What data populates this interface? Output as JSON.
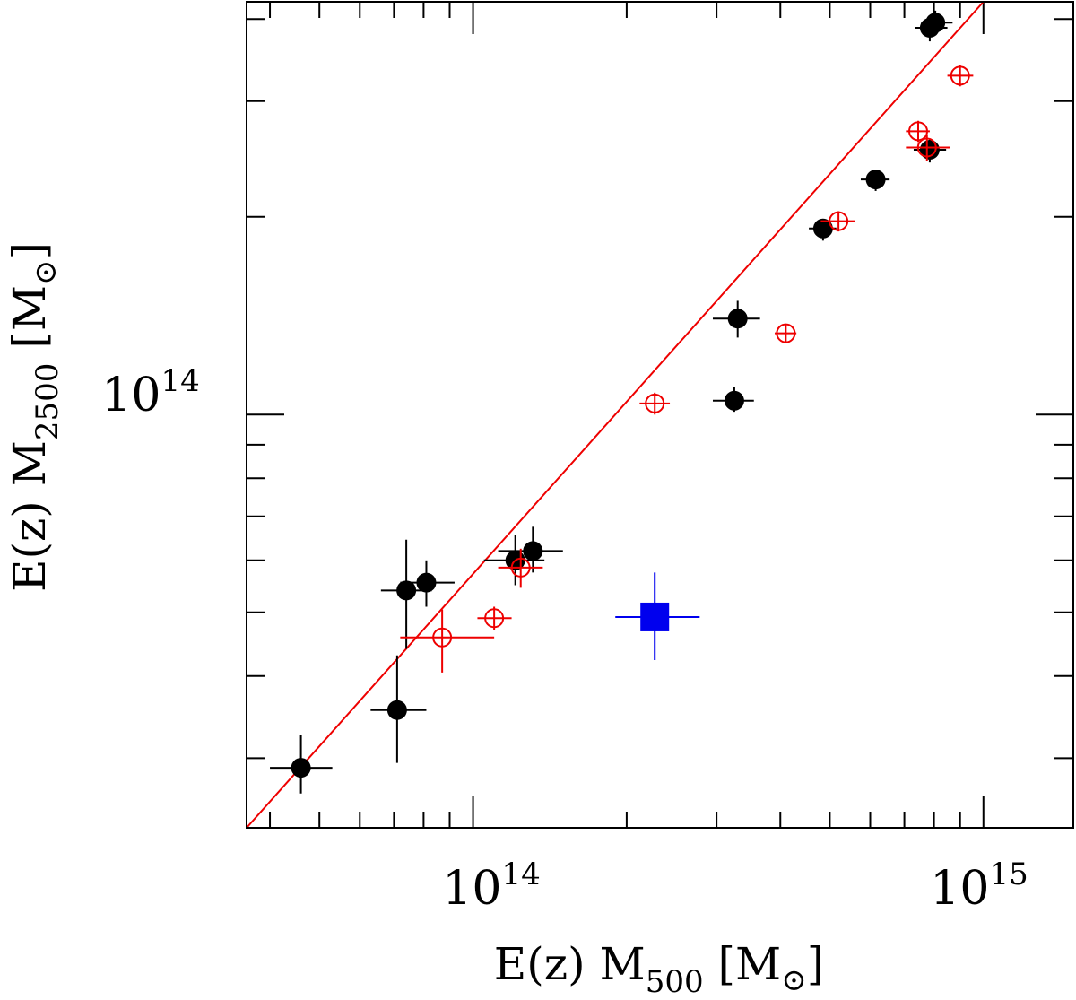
{
  "chart_data": {
    "type": "scatter",
    "xscale": "log",
    "yscale": "log",
    "xlim": [
      36000000000000.0,
      1500000000000000.0
    ],
    "ylim": [
      23500000000000.0,
      425000000000000.0
    ],
    "xlabel": {
      "base": "E(z)  M",
      "sub": "500",
      "unit_open": " [M",
      "unit_sub": "⊙",
      "unit_close": "]"
    },
    "ylabel": {
      "base": "E(z)  M",
      "sub": "2500",
      "unit_open": " [M",
      "unit_sub": "⊙",
      "unit_close": "]"
    },
    "x_tick_labels": [
      {
        "value": 100000000000000.0,
        "base": "10",
        "exp": "14"
      },
      {
        "value": 1000000000000000.0,
        "base": "10",
        "exp": "15"
      }
    ],
    "y_tick_labels": [
      {
        "value": 100000000000000.0,
        "base": "10",
        "exp": "14"
      }
    ],
    "fit_line": {
      "color": "#ee0000",
      "x": [
        36000000000000.0,
        1000000000000000.0
      ],
      "y": [
        23500000000000.0,
        425000000000000.0
      ]
    },
    "series": [
      {
        "name": "filled-black",
        "marker": "filled-circle",
        "color": "#000000",
        "points": [
          {
            "x": 46000000000000.0,
            "y": 29000000000000.0,
            "xlo": 40000000000000.0,
            "xhi": 53000000000000.0,
            "ylo": 26500000000000.0,
            "yhi": 32500000000000.0
          },
          {
            "x": 71000000000000.0,
            "y": 35500000000000.0,
            "xlo": 63000000000000.0,
            "xhi": 81000000000000.0,
            "ylo": 29500000000000.0,
            "yhi": 43000000000000.0
          },
          {
            "x": 74000000000000.0,
            "y": 54000000000000.0,
            "xlo": 66000000000000.0,
            "xhi": 83000000000000.0,
            "ylo": 44000000000000.0,
            "yhi": 64500000000000.0
          },
          {
            "x": 81000000000000.0,
            "y": 55500000000000.0,
            "xlo": 72000000000000.0,
            "xhi": 92000000000000.0,
            "ylo": 51000000000000.0,
            "yhi": 60000000000000.0
          },
          {
            "x": 121000000000000.0,
            "y": 60000000000000.0,
            "xlo": 105000000000000.0,
            "xhi": 138000000000000.0,
            "ylo": 55000000000000.0,
            "yhi": 65500000000000.0
          },
          {
            "x": 131000000000000.0,
            "y": 62000000000000.0,
            "xlo": 112000000000000.0,
            "xhi": 150000000000000.0,
            "ylo": 57500000000000.0,
            "yhi": 67500000000000.0
          },
          {
            "x": 325000000000000.0,
            "y": 105000000000000.0,
            "xlo": 295000000000000.0,
            "xhi": 355000000000000.0,
            "ylo": 101000000000000.0,
            "yhi": 110000000000000.0
          },
          {
            "x": 330000000000000.0,
            "y": 140000000000000.0,
            "xlo": 295000000000000.0,
            "xhi": 365000000000000.0,
            "ylo": 131000000000000.0,
            "yhi": 149000000000000.0
          },
          {
            "x": 485000000000000.0,
            "y": 192000000000000.0,
            "xlo": 455000000000000.0,
            "xhi": 515000000000000.0,
            "ylo": 184000000000000.0,
            "yhi": 198000000000000.0
          },
          {
            "x": 615000000000000.0,
            "y": 228000000000000.0,
            "xlo": 575000000000000.0,
            "xhi": 655000000000000.0,
            "ylo": 219000000000000.0,
            "yhi": 236000000000000.0
          },
          {
            "x": 785000000000000.0,
            "y": 253000000000000.0,
            "xlo": 730000000000000.0,
            "xhi": 845000000000000.0,
            "ylo": 242000000000000.0,
            "yhi": 263000000000000.0
          },
          {
            "x": 805000000000000.0,
            "y": 395000000000000.0,
            "xlo": 755000000000000.0,
            "xhi": 870000000000000.0,
            "ylo": 378000000000000.0,
            "yhi": 412000000000000.0
          },
          {
            "x": 785000000000000.0,
            "y": 388000000000000.0,
            "xlo": 735000000000000.0,
            "xhi": 850000000000000.0,
            "ylo": 370000000000000.0,
            "yhi": 405000000000000.0
          }
        ]
      },
      {
        "name": "open-red",
        "marker": "open-circle-cross",
        "color": "#ee0000",
        "points": [
          {
            "x": 87000000000000.0,
            "y": 45800000000000.0,
            "xlo": 72000000000000.0,
            "xhi": 110000000000000.0,
            "ylo": 40500000000000.0,
            "yhi": 50500000000000.0
          },
          {
            "x": 110000000000000.0,
            "y": 49000000000000.0,
            "xlo": 102000000000000.0,
            "xhi": 119000000000000.0,
            "ylo": 47000000000000.0,
            "yhi": 51000000000000.0
          },
          {
            "x": 124000000000000.0,
            "y": 58500000000000.0,
            "xlo": 112000000000000.0,
            "xhi": 137000000000000.0,
            "ylo": 54500000000000.0,
            "yhi": 62500000000000.0
          },
          {
            "x": 227000000000000.0,
            "y": 104000000000000.0,
            "xlo": 212000000000000.0,
            "xhi": 243000000000000.0,
            "ylo": 100000000000000.0,
            "yhi": 108000000000000.0
          },
          {
            "x": 410000000000000.0,
            "y": 133000000000000.0,
            "xlo": 390000000000000.0,
            "xhi": 430000000000000.0,
            "ylo": 129000000000000.0,
            "yhi": 137000000000000.0
          },
          {
            "x": 520000000000000.0,
            "y": 197000000000000.0,
            "xlo": 480000000000000.0,
            "xhi": 560000000000000.0,
            "ylo": 190000000000000.0,
            "yhi": 204000000000000.0
          },
          {
            "x": 745000000000000.0,
            "y": 270000000000000.0,
            "xlo": 705000000000000.0,
            "xhi": 785000000000000.0,
            "ylo": 260000000000000.0,
            "yhi": 280000000000000.0
          },
          {
            "x": 775000000000000.0,
            "y": 255000000000000.0,
            "xlo": 705000000000000.0,
            "xhi": 860000000000000.0,
            "ylo": 243000000000000.0,
            "yhi": 267000000000000.0
          },
          {
            "x": 900000000000000.0,
            "y": 328000000000000.0,
            "xlo": 850000000000000.0,
            "xhi": 955000000000000.0,
            "ylo": 316000000000000.0,
            "yhi": 340000000000000.0
          }
        ]
      },
      {
        "name": "blue-square",
        "marker": "filled-square",
        "color": "#0000ee",
        "points": [
          {
            "x": 227000000000000.0,
            "y": 49200000000000.0,
            "xlo": 190000000000000.0,
            "xhi": 278000000000000.0,
            "ylo": 42300000000000.0,
            "yhi": 57500000000000.0
          }
        ]
      }
    ]
  }
}
